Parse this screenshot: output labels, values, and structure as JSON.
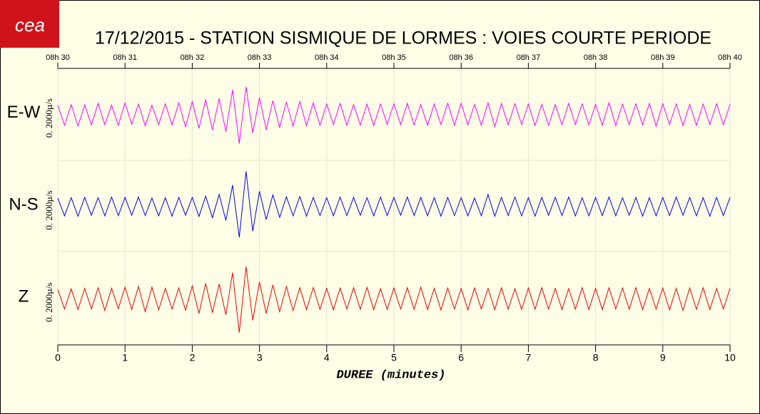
{
  "chart_data": {
    "type": "line",
    "logo": "cea",
    "title": "17/12/2015  -  STATION SISMIQUE DE LORMES : VOIES COURTE PERIODE",
    "x_label": "DUREE (minutes)",
    "scale_label": "0. 2000µ/s",
    "xlim": [
      0,
      10
    ],
    "xticks": [
      0,
      1,
      2,
      3,
      4,
      5,
      6,
      7,
      8,
      9,
      10
    ],
    "top_ticks": [
      {
        "value": 0,
        "label": "08h 30"
      },
      {
        "value": 1,
        "label": "08h 31"
      },
      {
        "value": 2,
        "label": "08h 32"
      },
      {
        "value": 3,
        "label": "08h 33"
      },
      {
        "value": 4,
        "label": "08h 34"
      },
      {
        "value": 5,
        "label": "08h 35"
      },
      {
        "value": 6,
        "label": "08h 36"
      },
      {
        "value": 7,
        "label": "08h 37"
      },
      {
        "value": 8,
        "label": "08h 38"
      },
      {
        "value": 9,
        "label": "08h 39"
      },
      {
        "value": 10,
        "label": "08h 40"
      }
    ],
    "ylim": [
      -1500,
      1500
    ],
    "grid": true,
    "x": [
      0,
      0.1,
      0.2,
      0.3,
      0.4,
      0.5,
      0.6,
      0.7,
      0.8,
      0.9,
      1,
      1.1,
      1.2,
      1.3,
      1.4,
      1.5,
      1.6,
      1.7,
      1.8,
      1.9,
      2,
      2.1,
      2.2,
      2.3,
      2.4,
      2.5,
      2.6,
      2.7,
      2.8,
      2.9,
      3,
      3.1,
      3.2,
      3.3,
      3.4,
      3.5,
      3.6,
      3.7,
      3.8,
      3.9,
      4,
      4.1,
      4.2,
      4.3,
      4.4,
      4.5,
      4.6,
      4.7,
      4.8,
      4.9,
      5,
      5.1,
      5.2,
      5.3,
      5.4,
      5.5,
      5.6,
      5.7,
      5.8,
      5.9,
      6,
      6.1,
      6.2,
      6.3,
      6.4,
      6.5,
      6.6,
      6.7,
      6.8,
      6.9,
      7,
      7.1,
      7.2,
      7.3,
      7.4,
      7.5,
      7.6,
      7.7,
      7.8,
      7.9,
      8,
      8.1,
      8.2,
      8.3,
      8.4,
      8.5,
      8.6,
      8.7,
      8.8,
      8.9,
      9,
      9.1,
      9.2,
      9.3,
      9.4,
      9.5,
      9.6,
      9.7,
      9.8,
      9.9,
      10
    ],
    "series": [
      {
        "name": "E-W",
        "color": "#ff00ff",
        "values": [
          300,
          -350,
          320,
          -380,
          310,
          -340,
          360,
          -330,
          300,
          -350,
          380,
          -320,
          340,
          -360,
          300,
          -330,
          350,
          -340,
          380,
          -400,
          420,
          -450,
          480,
          -500,
          520,
          -560,
          800,
          -950,
          900,
          -600,
          550,
          -500,
          450,
          -420,
          400,
          -380,
          420,
          -360,
          380,
          -350,
          340,
          -330,
          360,
          -350,
          320,
          -340,
          330,
          -360,
          340,
          -320,
          350,
          -330,
          360,
          -340,
          320,
          -350,
          340,
          -330,
          370,
          -350,
          360,
          -340,
          330,
          -350,
          380,
          -400,
          360,
          -340,
          350,
          -330,
          340,
          -360,
          330,
          -350,
          320,
          -340,
          360,
          -330,
          350,
          -340,
          330,
          -350,
          380,
          -360,
          340,
          -330,
          350,
          -340,
          360,
          -380,
          350,
          -330,
          340,
          -360,
          330,
          -350,
          340,
          -330,
          350,
          -340,
          330
        ]
      },
      {
        "name": "N-S",
        "color": "#0000ee",
        "values": [
          280,
          -300,
          290,
          -310,
          300,
          -280,
          290,
          -300,
          310,
          -290,
          300,
          -280,
          310,
          -290,
          280,
          -300,
          290,
          -310,
          300,
          -280,
          300,
          -320,
          340,
          -360,
          400,
          -450,
          700,
          -1000,
          1150,
          -800,
          500,
          -420,
          380,
          -350,
          320,
          -300,
          330,
          -310,
          300,
          -290,
          290,
          -300,
          310,
          -290,
          300,
          -280,
          290,
          -300,
          310,
          -290,
          300,
          -280,
          310,
          -290,
          300,
          -300,
          290,
          -310,
          300,
          -290,
          290,
          -300,
          280,
          -300,
          400,
          -310,
          300,
          -290,
          310,
          -300,
          290,
          -310,
          300,
          -280,
          300,
          -290,
          310,
          -300,
          290,
          -300,
          300,
          -290,
          310,
          -300,
          290,
          -280,
          300,
          -310,
          290,
          -300,
          300,
          -290,
          310,
          -280,
          300,
          -300,
          290,
          -310,
          300,
          -290,
          300
        ]
      },
      {
        "name": "Z",
        "color": "#ee0000",
        "values": [
          300,
          -330,
          320,
          -350,
          340,
          -330,
          360,
          -380,
          340,
          -320,
          380,
          -350,
          400,
          -420,
          380,
          -360,
          340,
          -330,
          350,
          -370,
          420,
          -480,
          500,
          -450,
          480,
          -520,
          850,
          -1100,
          1050,
          -700,
          550,
          -480,
          450,
          -420,
          400,
          -380,
          360,
          -350,
          370,
          -340,
          340,
          -360,
          350,
          -330,
          360,
          -340,
          370,
          -350,
          330,
          -340,
          350,
          -330,
          360,
          -340,
          380,
          -350,
          340,
          -360,
          350,
          -330,
          340,
          -360,
          350,
          -330,
          340,
          -350,
          360,
          -340,
          330,
          -350,
          350,
          -340,
          360,
          -330,
          340,
          -350,
          330,
          -340,
          360,
          -350,
          340,
          -350,
          360,
          -330,
          350,
          -340,
          360,
          -350,
          340,
          -330,
          350,
          -360,
          340,
          -380,
          350,
          -340,
          360,
          -350,
          340,
          -330,
          340
        ]
      }
    ]
  }
}
